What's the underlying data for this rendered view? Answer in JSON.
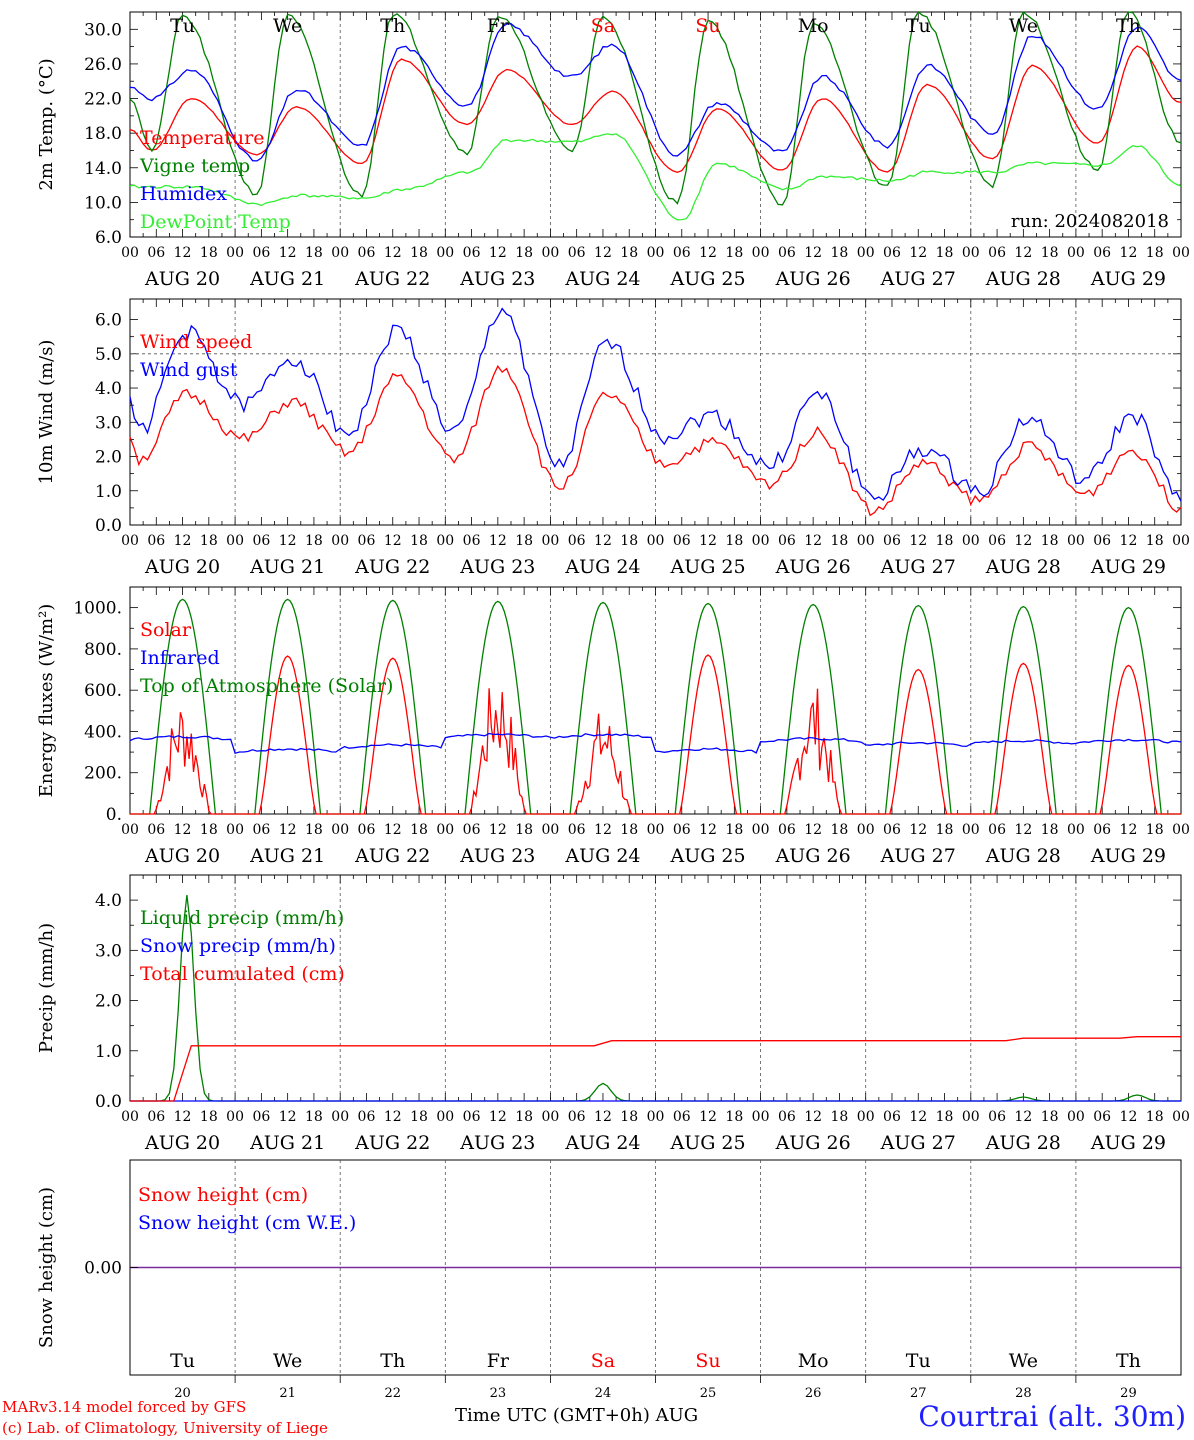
{
  "colors": {
    "temperature": "#ff0000",
    "vigne": "#008000",
    "humidex": "#0000ff",
    "dewpoint": "#33ee33",
    "weekend": "#ff0000",
    "snow_height": "#ff0000",
    "snow_we": "#0000ff",
    "station": "#2020ff"
  },
  "footer": {
    "credit1": "MARv3.14 model forced by GFS",
    "credit2": "(c) Lab. of Climatology, University of Liege",
    "x_title": "Time UTC (GMT+0h) AUG",
    "station": "Courtrai (alt. 30m)"
  },
  "run_label": "run: 2024082018",
  "chart_data": [
    {
      "id": "temp",
      "type": "line",
      "ylabel": "2m Temp. (°C)",
      "ylim": [
        6.0,
        32.0
      ],
      "yticks": [
        6.0,
        10.0,
        14.0,
        18.0,
        22.0,
        26.0,
        30.0
      ],
      "tick_decimals": 1,
      "day_labels": [
        "Tu",
        "We",
        "Th",
        "Fr",
        "Sa",
        "Su",
        "Mo",
        "Tu",
        "We",
        "Th"
      ],
      "hour_labels": [
        "00",
        "06",
        "12",
        "18"
      ],
      "date_labels": [
        "AUG 20",
        "AUG 21",
        "AUG 22",
        "AUG 23",
        "AUG 24",
        "AUG 25",
        "AUG 26",
        "AUG 27",
        "AUG 28",
        "AUG 29"
      ],
      "x_end_label": "00",
      "series": [
        {
          "name": "Temperature",
          "color": "temperature",
          "min": [
            16.0,
            15.5,
            14.5,
            19.0,
            19.0,
            13.5,
            13.7,
            13.5,
            15.0,
            16.8
          ],
          "max": [
            22.0,
            21.0,
            26.5,
            25.3,
            22.8,
            20.8,
            22.0,
            23.6,
            25.8,
            28.0
          ],
          "end": 21.5
        },
        {
          "name": "Vigne temp",
          "color": "vigne",
          "min": [
            16.0,
            11.0,
            10.8,
            15.8,
            16.0,
            10.0,
            9.8,
            11.8,
            12.0,
            13.8
          ],
          "max": [
            31.5,
            31.5,
            31.8,
            31.5,
            31.5,
            31.0,
            30.5,
            32.0,
            32.0,
            32.0
          ],
          "end": 17.0
        },
        {
          "name": "Humidex",
          "color": "humidex",
          "min": [
            22.0,
            14.8,
            16.5,
            21.2,
            24.5,
            15.5,
            15.8,
            16.5,
            18.0,
            20.8
          ],
          "max": [
            25.3,
            23.0,
            28.0,
            30.5,
            28.2,
            21.5,
            24.5,
            25.8,
            29.2,
            30.2
          ],
          "end": 24.0
        },
        {
          "name": "DewPoint Temp",
          "color": "dewpoint",
          "min": [
            11.8,
            9.8,
            10.5,
            13.5,
            17.0,
            8.0,
            11.5,
            12.5,
            13.5,
            14.3
          ],
          "max": [
            11.8,
            10.8,
            11.5,
            17.2,
            18.0,
            14.5,
            13.0,
            13.5,
            14.5,
            16.5
          ],
          "end": 12.0
        }
      ]
    },
    {
      "id": "wind",
      "type": "line",
      "ylabel": "10m Wind (m/s)",
      "ylim": [
        0.0,
        6.6
      ],
      "yticks": [
        0.0,
        1.0,
        2.0,
        3.0,
        4.0,
        5.0,
        6.0
      ],
      "tick_decimals": 1,
      "reference_line": 5.0,
      "hour_labels": [
        "00",
        "06",
        "12",
        "18"
      ],
      "date_labels": [
        "AUG 20",
        "AUG 21",
        "AUG 22",
        "AUG 23",
        "AUG 24",
        "AUG 25",
        "AUG 26",
        "AUG 27",
        "AUG 28",
        "AUG 29"
      ],
      "x_end_label": "00",
      "series": [
        {
          "name": "Wind speed",
          "color": "temperature",
          "min": [
            1.9,
            2.5,
            2.1,
            1.9,
            1.1,
            1.8,
            1.2,
            0.4,
            0.7,
            0.9
          ],
          "max": [
            3.8,
            3.6,
            4.3,
            4.6,
            3.8,
            2.4,
            2.7,
            1.8,
            2.3,
            2.2
          ],
          "end": 0.5
        },
        {
          "name": "Wind gust",
          "color": "humidex",
          "min": [
            2.7,
            3.5,
            2.7,
            2.7,
            1.7,
            2.6,
            1.7,
            0.8,
            1.0,
            1.3
          ],
          "max": [
            5.6,
            4.9,
            5.7,
            6.3,
            5.3,
            3.2,
            3.8,
            2.2,
            3.1,
            3.2
          ],
          "end": 0.7
        }
      ]
    },
    {
      "id": "energy",
      "type": "line",
      "ylabel": "Energy fluxes (W/m²)",
      "ylim": [
        0,
        1100
      ],
      "yticks": [
        0,
        200,
        400,
        600,
        800,
        1000
      ],
      "tick_format": "dot",
      "hour_labels": [
        "00",
        "06",
        "12",
        "18"
      ],
      "date_labels": [
        "AUG 20",
        "AUG 21",
        "AUG 22",
        "AUG 23",
        "AUG 24",
        "AUG 25",
        "AUG 26",
        "AUG 27",
        "AUG 28",
        "AUG 29"
      ],
      "x_end_label": "00",
      "series": [
        {
          "name": "Solar",
          "color": "temperature",
          "daily_peak": [
            580,
            765,
            755,
            720,
            520,
            770,
            650,
            700,
            730,
            720
          ]
        },
        {
          "name": "Infrared",
          "color": "humidex",
          "daily_mean": [
            360,
            300,
            320,
            370,
            370,
            300,
            350,
            330,
            340,
            345
          ]
        },
        {
          "name": "Top of Atmosphere (Solar)",
          "color": "vigne",
          "daily_peak": [
            1040,
            1040,
            1035,
            1030,
            1025,
            1020,
            1015,
            1010,
            1005,
            1000
          ]
        }
      ]
    },
    {
      "id": "precip",
      "type": "line",
      "ylabel": "Precip (mm/h)",
      "ylim": [
        0.0,
        4.5
      ],
      "yticks": [
        0.0,
        1.0,
        2.0,
        3.0,
        4.0
      ],
      "tick_decimals": 1,
      "hour_labels": [
        "00",
        "06",
        "12",
        "18"
      ],
      "date_labels": [
        "AUG 20",
        "AUG 21",
        "AUG 22",
        "AUG 23",
        "AUG 24",
        "AUG 25",
        "AUG 26",
        "AUG 27",
        "AUG 28",
        "AUG 29"
      ],
      "x_end_label": "00",
      "series": [
        {
          "name": "Liquid precip (mm/h)",
          "color": "vigne",
          "peaks": [
            {
              "day": 0,
              "hour": 13,
              "value": 4.1
            },
            {
              "day": 4,
              "hour": 12,
              "value": 0.35
            },
            {
              "day": 8,
              "hour": 12,
              "value": 0.08
            },
            {
              "day": 9,
              "hour": 14,
              "value": 0.12
            }
          ]
        },
        {
          "name": "Snow precip (mm/h)",
          "color": "humidex",
          "values": [
            0
          ]
        },
        {
          "name": "Total cumulated (cm)",
          "color": "temperature",
          "steps": [
            {
              "day": 0,
              "hour": 14,
              "value": 1.1
            },
            {
              "day": 4,
              "hour": 14,
              "value": 1.2
            },
            {
              "day": 8,
              "hour": 12,
              "value": 1.25
            },
            {
              "day": 9,
              "hour": 14,
              "value": 1.28
            }
          ]
        }
      ]
    },
    {
      "id": "snow",
      "type": "line",
      "ylabel": "Snow height (cm)",
      "ylim": [
        -1,
        1
      ],
      "yticks": [
        0.0
      ],
      "tick_decimals": 2,
      "day_labels": [
        "Tu",
        "We",
        "Th",
        "Fr",
        "Sa",
        "Su",
        "Mo",
        "Tu",
        "We",
        "Th"
      ],
      "date_numbers": [
        "20",
        "21",
        "22",
        "23",
        "24",
        "25",
        "26",
        "27",
        "28",
        "29"
      ],
      "series": [
        {
          "name": "Snow height (cm)",
          "color": "snow_height",
          "values": [
            0
          ]
        },
        {
          "name": "Snow height (cm W.E.)",
          "color": "snow_we",
          "values": [
            0
          ]
        }
      ]
    }
  ]
}
